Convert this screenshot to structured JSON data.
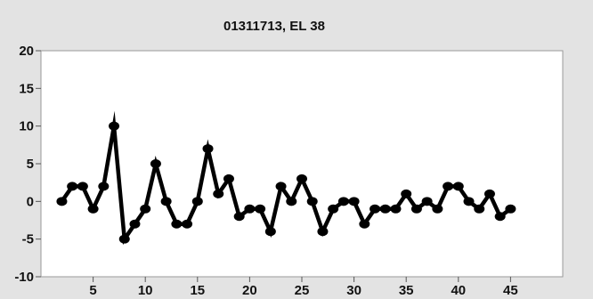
{
  "chart_data": {
    "type": "line",
    "title": "01311713, EL 38",
    "xlabel": "",
    "ylabel": "",
    "xlim": [
      0,
      50
    ],
    "ylim": [
      -10,
      20
    ],
    "xticks": [
      5,
      10,
      15,
      20,
      25,
      30,
      35,
      40,
      45
    ],
    "yticks": [
      -10,
      -5,
      0,
      5,
      10,
      15,
      20
    ],
    "xtick_labels": [
      "5",
      "10",
      "15",
      "20",
      "25",
      "30",
      "35",
      "40",
      "45"
    ],
    "ytick_labels": [
      "-10",
      "-5",
      "0",
      "5",
      "10",
      "15",
      "20"
    ],
    "grid": false,
    "series": [
      {
        "color": "#000000",
        "x": [
          2,
          3,
          4,
          5,
          6,
          7,
          8,
          9,
          10,
          11,
          12,
          13,
          14,
          15,
          16,
          17,
          18,
          19,
          20,
          21,
          22,
          23,
          24,
          25,
          26,
          27,
          28,
          29,
          30,
          31,
          32,
          33,
          34,
          35,
          36,
          37,
          38,
          39,
          40,
          41,
          42,
          43,
          44,
          45
        ],
        "values": [
          0,
          2,
          2,
          -1,
          2,
          10,
          -5,
          -3,
          -1,
          5,
          0,
          -3,
          -3,
          0,
          7,
          1,
          3,
          -2,
          -1,
          -1,
          -4,
          2,
          0,
          3,
          0,
          -4,
          -1,
          0,
          0,
          -3,
          -1,
          -1,
          -1,
          1,
          -1,
          0,
          -1,
          2,
          2,
          0,
          -1,
          1,
          -2,
          -1
        ]
      }
    ]
  }
}
